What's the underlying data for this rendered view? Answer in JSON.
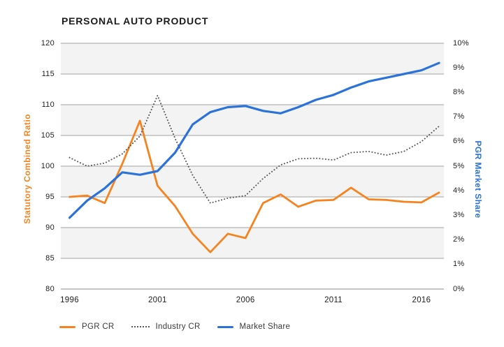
{
  "title": "PERSONAL AUTO PRODUCT",
  "chart_data": {
    "type": "line",
    "title": "PERSONAL AUTO PRODUCT",
    "x": [
      1996,
      1997,
      1998,
      1999,
      2000,
      2001,
      2002,
      2003,
      2004,
      2005,
      2006,
      2007,
      2008,
      2009,
      2010,
      2011,
      2012,
      2013,
      2014,
      2015,
      2016,
      2017
    ],
    "x_tick_labels": [
      "1996",
      "2001",
      "2006",
      "2011",
      "2016"
    ],
    "x_tick_years": [
      1996,
      2001,
      2006,
      2011,
      2016
    ],
    "left_axis": {
      "label": "Statutory Combined Ratio",
      "range": [
        80,
        120
      ],
      "ticks": [
        "120",
        "115",
        "110",
        "105",
        "100",
        "95",
        "90",
        "85",
        "80"
      ],
      "tick_values": [
        120,
        115,
        110,
        105,
        100,
        95,
        90,
        85,
        80
      ],
      "color": "#F5831F"
    },
    "right_axis": {
      "label": "PGR Market Share",
      "range": [
        0,
        10
      ],
      "ticks": [
        "10%",
        "9%",
        "8%",
        "7%",
        "6%",
        "5%",
        "4%",
        "3%",
        "2%",
        "1%",
        "0%"
      ],
      "tick_values": [
        10,
        9,
        8,
        7,
        6,
        5,
        4,
        3,
        2,
        1,
        0
      ],
      "color": "#2B72D9"
    },
    "series": [
      {
        "name": "PGR CR",
        "axis": "left",
        "style": "solid",
        "color": "#F5831F",
        "values": [
          95.0,
          95.2,
          94.0,
          100.4,
          107.4,
          96.8,
          93.5,
          89.0,
          86.0,
          89.0,
          88.3,
          94.0,
          95.4,
          93.4,
          94.4,
          94.5,
          96.5,
          94.6,
          94.5,
          94.2,
          94.1,
          95.7
        ]
      },
      {
        "name": "Industry CR",
        "axis": "left",
        "style": "dotted",
        "color": "#58585A",
        "values": [
          101.4,
          100.0,
          100.5,
          102.0,
          104.9,
          111.5,
          104.5,
          98.5,
          94.0,
          94.8,
          95.2,
          98.0,
          100.2,
          101.2,
          101.3,
          101.0,
          102.2,
          102.4,
          101.8,
          102.4,
          104.0,
          106.5
        ]
      },
      {
        "name": "Market Share",
        "axis": "right",
        "style": "solid",
        "color": "#2B72D9",
        "values": [
          2.9,
          3.6,
          4.1,
          4.75,
          4.65,
          4.8,
          5.55,
          6.7,
          7.2,
          7.4,
          7.45,
          7.25,
          7.15,
          7.4,
          7.7,
          7.9,
          8.2,
          8.45,
          8.6,
          8.75,
          8.9,
          9.2
        ]
      }
    ],
    "grid": {
      "bands": true,
      "band_color": "#F3F3F3",
      "line_color": "#A3A3A3",
      "baseline_color": "#8A8A8A"
    },
    "legend_position": "bottom-left"
  },
  "legend": {
    "items": [
      {
        "label": "PGR CR"
      },
      {
        "label": "Industry CR"
      },
      {
        "label": "Market Share"
      }
    ]
  }
}
